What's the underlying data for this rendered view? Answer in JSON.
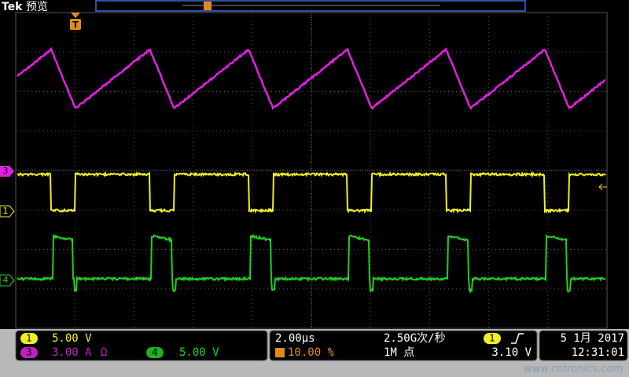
{
  "header": {
    "brand": "Tek",
    "mode": "预览"
  },
  "trigger_marker": "T",
  "channel_markers": [
    "3",
    "1",
    "4"
  ],
  "status": {
    "ch1": {
      "badge": "1",
      "scale": "5.00 V"
    },
    "ch3": {
      "badge": "3",
      "scale": "3.00 A",
      "unit_symbol": "Ω"
    },
    "ch4": {
      "badge": "4",
      "scale": "5.00 V"
    },
    "timebase": "2.00µs",
    "trigger_position": "10.00 %",
    "sample_rate": "2.50G次/秒",
    "record_length": "1M 点",
    "trigger": {
      "source": "1",
      "level": "3.10 V"
    },
    "date": "5 1月 2017",
    "time": "12:31:01"
  },
  "watermark": "www.cntronics.com"
}
